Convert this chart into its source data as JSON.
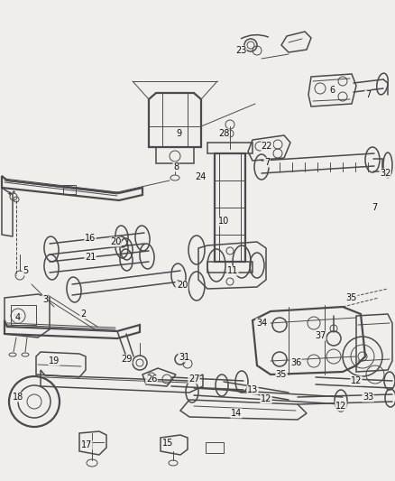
{
  "bg_color": "#f0eeeb",
  "line_color": "#4a4a4a",
  "label_color": "#111111",
  "figsize": [
    4.38,
    5.33
  ],
  "dpi": 100,
  "xlim": [
    0,
    438
  ],
  "ylim": [
    0,
    533
  ]
}
